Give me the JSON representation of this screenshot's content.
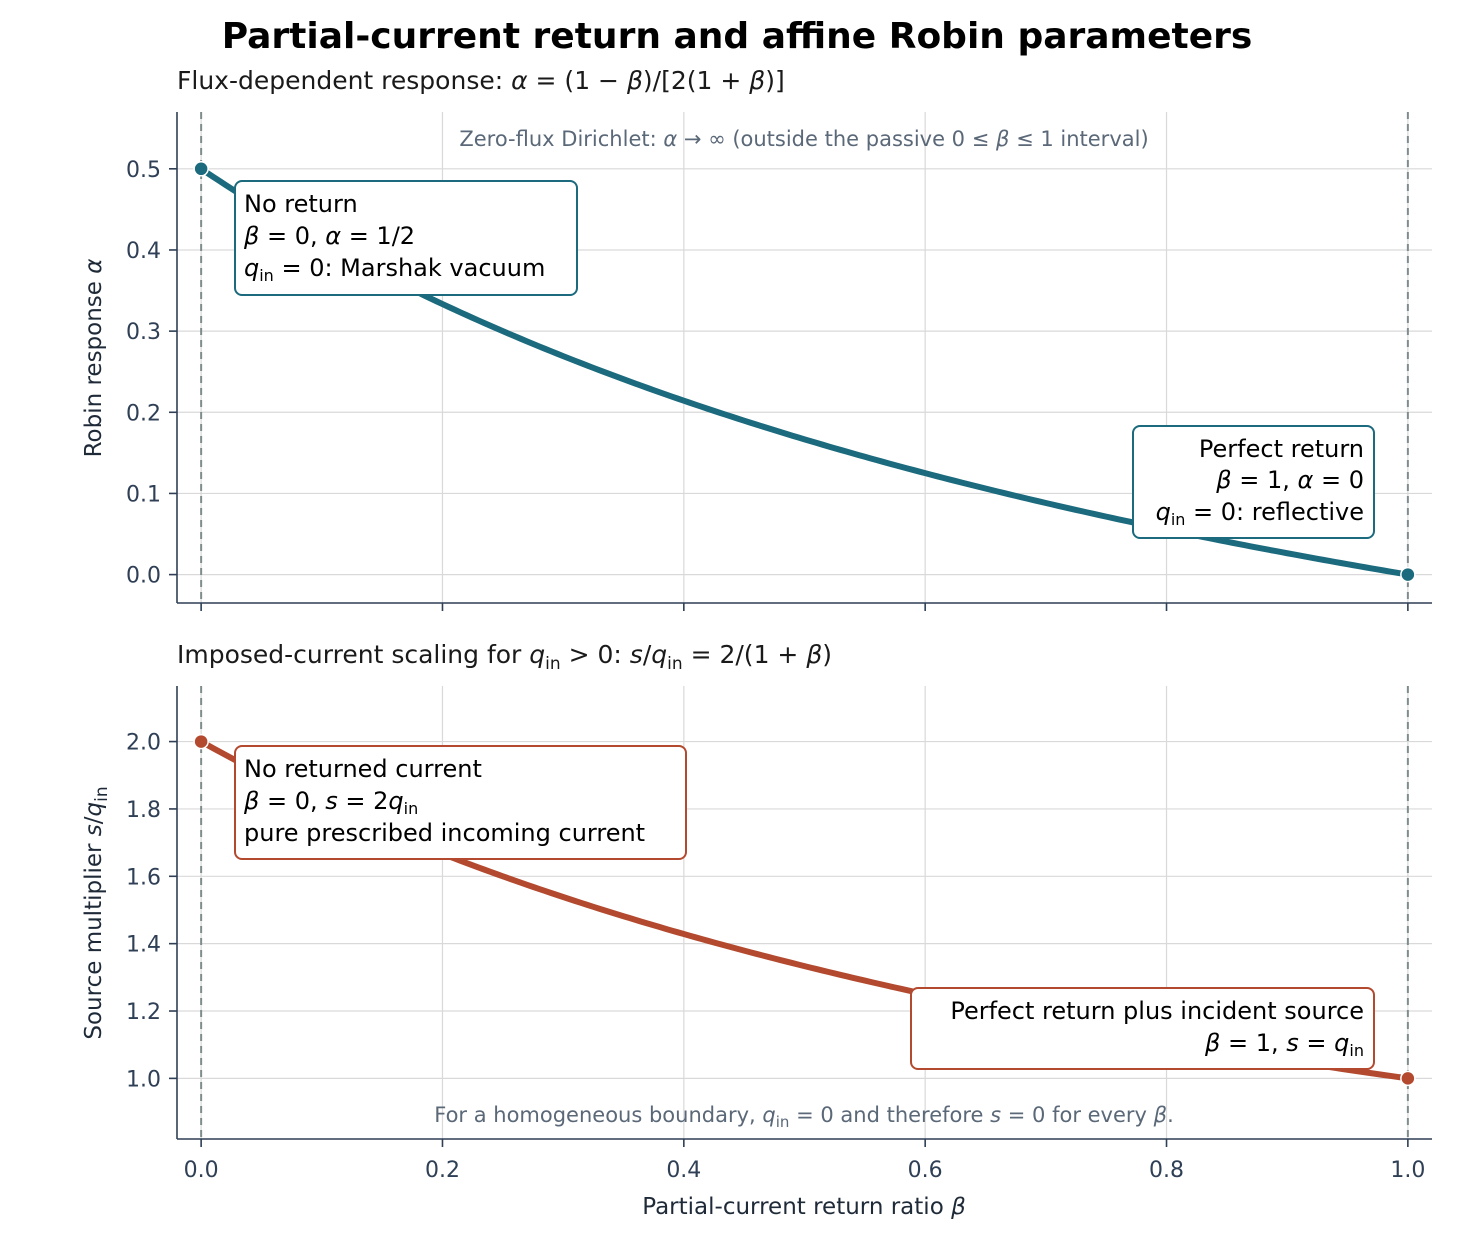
{
  "figure": {
    "title": "Partial-current return and affine Robin parameters",
    "xlabel": "Partial-current return ratio β"
  },
  "colors": {
    "alpha": "#1b6a7d",
    "source": "#b34a2f",
    "ref": "#7f8c8d"
  },
  "chart_data": [
    {
      "type": "line",
      "title": "Flux-dependent response: α = (1 − β)/[2(1 + β)]",
      "ylabel": "Robin response α",
      "xlim": [
        -0.02,
        1.02
      ],
      "ylim": [
        -0.035,
        0.57
      ],
      "xticks": [
        0.0,
        0.2,
        0.4,
        0.6,
        0.8,
        1.0
      ],
      "yticks": [
        0.0,
        0.1,
        0.2,
        0.3,
        0.4,
        0.5
      ],
      "ytick_labels": [
        "0.0",
        "0.1",
        "0.2",
        "0.3",
        "0.4",
        "0.5"
      ],
      "grid": true,
      "reference_lines_x": [
        0.0,
        1.0
      ],
      "series": [
        {
          "formula": "alpha",
          "x": [
            0,
            0.1,
            0.2,
            0.3,
            0.4,
            0.5,
            0.6,
            0.7,
            0.8,
            0.9,
            1.0
          ],
          "values": [
            0.5,
            0.409,
            0.333,
            0.269,
            0.214,
            0.167,
            0.125,
            0.088,
            0.056,
            0.026,
            0.0
          ]
        }
      ],
      "endpoints": [
        {
          "x": 0.0,
          "y": 0.5
        },
        {
          "x": 1.0,
          "y": 0.0
        }
      ],
      "note": "Zero-flux Dirichlet: α → ∞ (outside the passive 0 ≤ β ≤ 1 interval)",
      "annotations": [
        {
          "lines": [
            "No return",
            "β = 0,  α = 1/2",
            "qin = 0: Marshak vacuum"
          ],
          "anchor": "top-left"
        },
        {
          "lines": [
            "Perfect return",
            "β = 1,  α = 0",
            "qin = 0: reflective"
          ],
          "anchor": "bottom-right"
        }
      ]
    },
    {
      "type": "line",
      "title": "Imposed-current scaling for qin > 0: s/qin = 2/(1 + β)",
      "ylabel": "Source multiplier s/qin",
      "xlim": [
        -0.02,
        1.02
      ],
      "ylim": [
        0.82,
        2.165
      ],
      "xticks": [
        0.0,
        0.2,
        0.4,
        0.6,
        0.8,
        1.0
      ],
      "xtick_labels": [
        "0.0",
        "0.2",
        "0.4",
        "0.6",
        "0.8",
        "1.0"
      ],
      "yticks": [
        1.0,
        1.2,
        1.4,
        1.6,
        1.8,
        2.0
      ],
      "ytick_labels": [
        "1.0",
        "1.2",
        "1.4",
        "1.6",
        "1.8",
        "2.0"
      ],
      "grid": true,
      "reference_lines_x": [
        0.0,
        1.0
      ],
      "series": [
        {
          "formula": "source",
          "x": [
            0,
            0.1,
            0.2,
            0.3,
            0.4,
            0.5,
            0.6,
            0.7,
            0.8,
            0.9,
            1.0
          ],
          "values": [
            2.0,
            1.818,
            1.667,
            1.538,
            1.429,
            1.333,
            1.25,
            1.176,
            1.111,
            1.053,
            1.0
          ]
        }
      ],
      "endpoints": [
        {
          "x": 0.0,
          "y": 2.0
        },
        {
          "x": 1.0,
          "y": 1.0
        }
      ],
      "note": "For a homogeneous boundary, qin = 0 and therefore s = 0 for every β.",
      "annotations": [
        {
          "lines": [
            "No returned current",
            "β = 0,  s = 2qin",
            "pure prescribed incoming current"
          ],
          "anchor": "top-left"
        },
        {
          "lines": [
            "Perfect return plus incident source",
            "β = 1,  s = qin"
          ],
          "anchor": "bottom-right"
        }
      ]
    }
  ]
}
